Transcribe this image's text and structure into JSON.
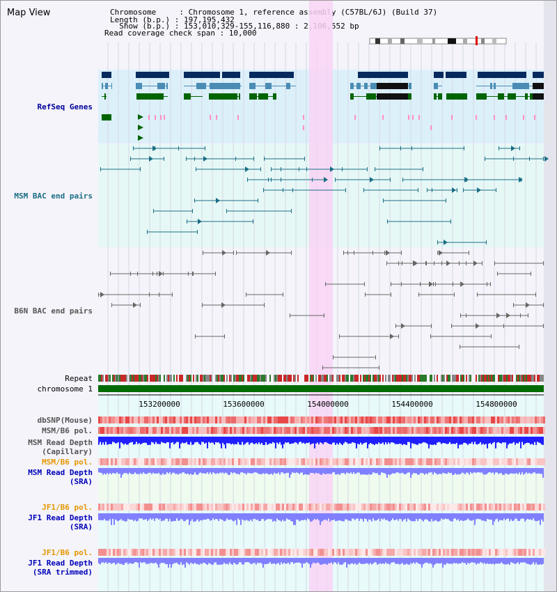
{
  "title": "Map View",
  "info": {
    "chromosome": "Chromosome     : Chromosome 1, reference assembly (C57BL/6J) (Build 37)",
    "length": "Length (b.p.) : 197,195,432",
    "show": "  Show (b.p.) : 153,010,329-155,116,880 : 2,106,552 bp",
    "coverage": "Read coverage check span : 10,000"
  },
  "tracks": {
    "refseq": "RefSeq Genes",
    "msm_bac": "MSM BAC end pairs",
    "b6n_bac": "B6N BAC end pairs",
    "repeat": "Repeat",
    "chromosome": "chromosome 1",
    "dbsnp": "dbSNP(Mouse)",
    "msm_b6_pol_1": "MSM/B6 pol.",
    "msm_depth_cap_1": "MSM Read Depth",
    "msm_depth_cap_2": "(Capillary)",
    "msm_b6_pol_2": "MSM/B6 pol.",
    "msm_depth_sra_1": "MSM Read Depth",
    "msm_depth_sra_2": "(SRA)",
    "jf1_pol_1": "JF1/B6 pol.",
    "jf1_depth_sra_1": "JF1 Read Depth",
    "jf1_depth_sra_2": "(SRA)",
    "jf1_pol_2": "JF1/B6 pol.",
    "jf1_depth_trim_1": "JF1 Read Depth",
    "jf1_depth_trim_2": "(SRA trimmed)"
  },
  "axis": {
    "ticks": [
      "153200000",
      "153600000",
      "154000000",
      "154400000",
      "154800000"
    ]
  },
  "colors": {
    "refseq_bg": "#dcf0fa",
    "bac_bg": "#e6f8f6",
    "highlight": "#f8d4f4",
    "gene_navy": "#062a5e",
    "gene_teal": "#4a8cb4",
    "gene_green": "#006400",
    "chrom_green": "#006b00",
    "depth_blue": "#1f1fff",
    "depth_light": "#8080ff",
    "snp_red": "#e83030"
  }
}
